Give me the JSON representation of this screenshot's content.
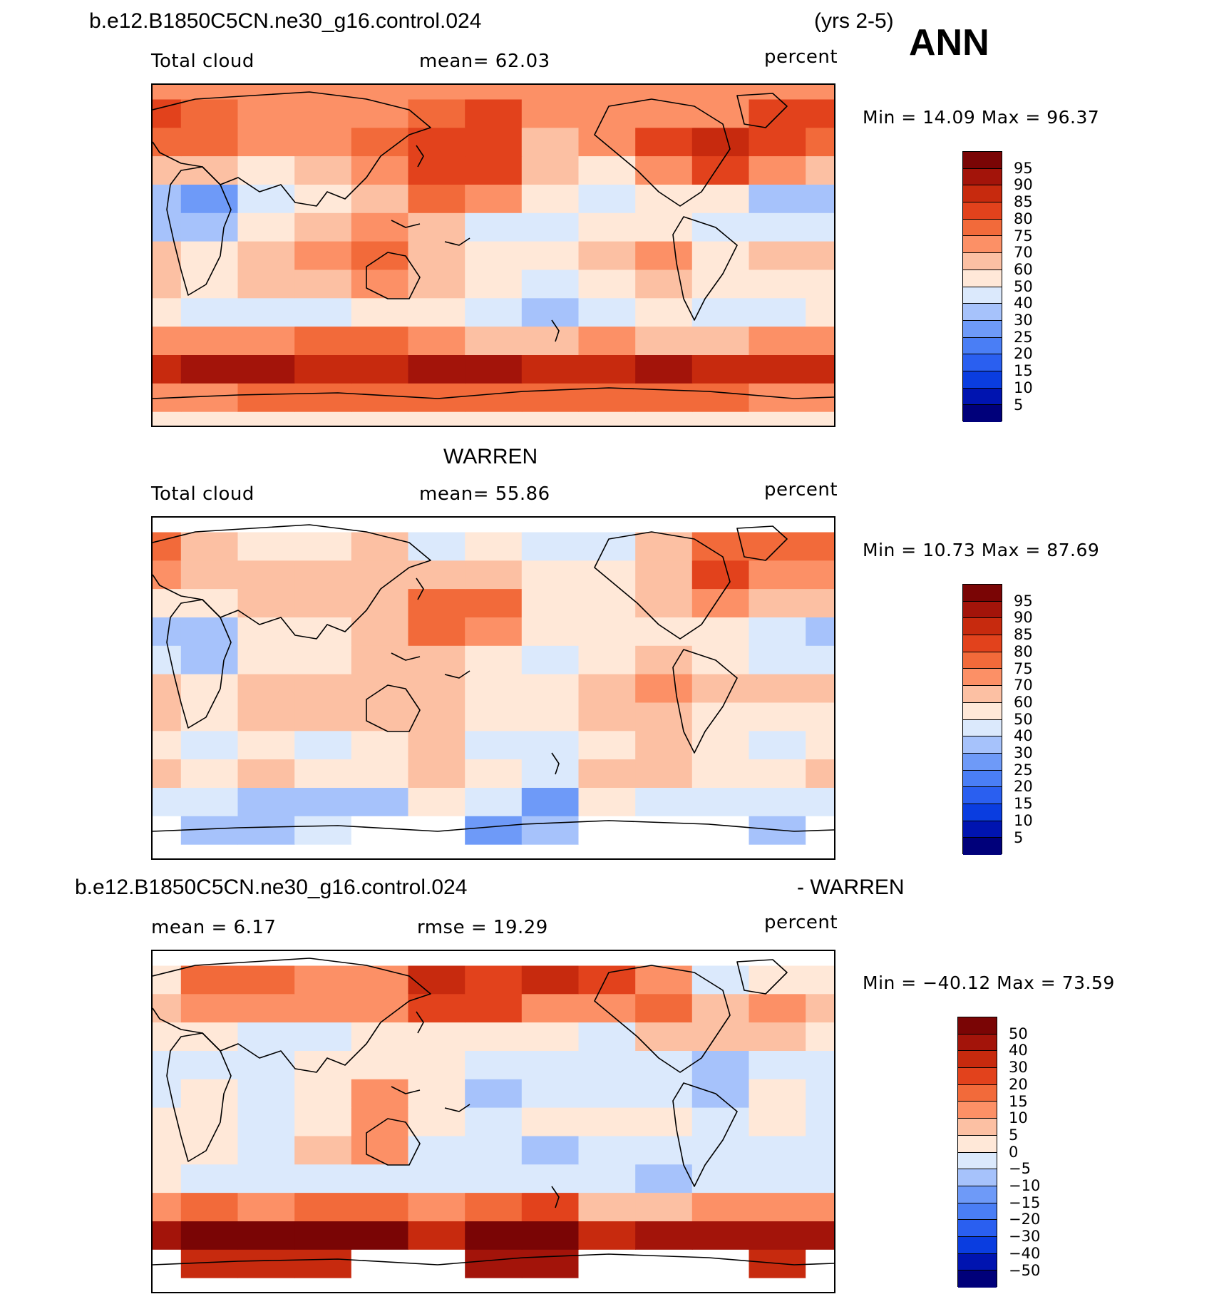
{
  "header": {
    "case_name": "b.e12.B1850C5CN.ne30_g16.control.024",
    "years": "(yrs 2-5)",
    "season": "ANN"
  },
  "panels": [
    {
      "id": "model",
      "title": "",
      "left_label": "Total cloud",
      "center_label": "mean=   62.03",
      "units": "percent",
      "minmax": "Min =   14.09 Max =   96.37",
      "colorbar_labels": [
        "95",
        "90",
        "85",
        "80",
        "75",
        "70",
        "60",
        "50",
        "40",
        "30",
        "25",
        "20",
        "15",
        "10",
        "5"
      ]
    },
    {
      "id": "obs",
      "title": "WARREN",
      "left_label": "Total cloud",
      "center_label": "mean=   55.86",
      "units": "percent",
      "minmax": "Min =   10.73 Max =   87.69",
      "colorbar_labels": [
        "95",
        "90",
        "85",
        "80",
        "75",
        "70",
        "60",
        "50",
        "40",
        "30",
        "25",
        "20",
        "15",
        "10",
        "5"
      ]
    },
    {
      "id": "diff",
      "title_left": "b.e12.B1850C5CN.ne30_g16.control.024",
      "title_right": "- WARREN",
      "left_label": "mean =    6.17",
      "center_label": "rmse =   19.29",
      "units": "percent",
      "minmax": "Min = −40.12  Max =   73.59",
      "colorbar_labels": [
        "50",
        "40",
        "30",
        "20",
        "15",
        "10",
        "5",
        "0",
        "−5",
        "−10",
        "−15",
        "−20",
        "−30",
        "−40",
        "−50"
      ]
    }
  ],
  "chart_data": [
    {
      "type": "heatmap",
      "title": "b.e12.B1850C5CN.ne30_g16.control.024",
      "variable": "Total cloud",
      "units": "percent",
      "mean": 62.03,
      "min": 14.09,
      "max": 96.37,
      "levels": [
        5,
        10,
        15,
        20,
        25,
        30,
        40,
        50,
        60,
        70,
        75,
        80,
        85,
        90,
        95
      ],
      "lat": [
        -90,
        -75,
        -60,
        -45,
        -30,
        -15,
        0,
        15,
        30,
        45,
        60,
        75,
        90
      ],
      "lon": [
        30,
        60,
        90,
        120,
        150,
        180,
        210,
        240,
        270,
        300,
        330,
        360,
        390
      ],
      "values": [
        [
          58,
          58,
          58,
          58,
          58,
          58,
          58,
          58,
          58,
          58,
          58,
          58,
          58
        ],
        [
          72,
          74,
          75,
          76,
          76,
          76,
          76,
          76,
          76,
          78,
          76,
          74,
          72
        ],
        [
          88,
          90,
          90,
          88,
          88,
          90,
          90,
          88,
          86,
          90,
          88,
          88,
          88
        ],
        [
          70,
          72,
          72,
          76,
          76,
          70,
          68,
          66,
          70,
          66,
          68,
          70,
          70
        ],
        [
          55,
          40,
          45,
          40,
          52,
          58,
          40,
          38,
          45,
          55,
          45,
          42,
          50
        ],
        [
          60,
          56,
          60,
          65,
          72,
          60,
          50,
          45,
          58,
          60,
          50,
          55,
          55
        ],
        [
          62,
          58,
          60,
          70,
          76,
          64,
          56,
          55,
          68,
          70,
          58,
          62,
          60
        ],
        [
          38,
          36,
          50,
          60,
          70,
          62,
          48,
          45,
          56,
          58,
          48,
          45,
          40
        ],
        [
          30,
          28,
          48,
          55,
          65,
          78,
          70,
          55,
          48,
          55,
          50,
          38,
          35
        ],
        [
          62,
          60,
          58,
          60,
          70,
          82,
          80,
          62,
          56,
          72,
          80,
          70,
          62
        ],
        [
          78,
          76,
          72,
          72,
          76,
          84,
          84,
          68,
          70,
          80,
          86,
          82,
          78
        ],
        [
          80,
          78,
          74,
          72,
          74,
          78,
          80,
          74,
          72,
          70,
          72,
          80,
          80
        ],
        [
          70,
          70,
          70,
          70,
          70,
          70,
          70,
          70,
          70,
          70,
          70,
          70,
          70
        ]
      ]
    },
    {
      "type": "heatmap",
      "title": "WARREN",
      "variable": "Total cloud",
      "units": "percent",
      "mean": 55.86,
      "min": 10.73,
      "max": 87.69,
      "levels": [
        5,
        10,
        15,
        20,
        25,
        30,
        40,
        50,
        60,
        70,
        75,
        80,
        85,
        90,
        95
      ],
      "lat": [
        -90,
        -75,
        -60,
        -45,
        -30,
        -15,
        0,
        15,
        30,
        45,
        60,
        75,
        90
      ],
      "lon": [
        30,
        60,
        90,
        120,
        150,
        180,
        210,
        240,
        270,
        300,
        330,
        360,
        390
      ],
      "values": [
        [
          null,
          null,
          null,
          null,
          null,
          null,
          null,
          null,
          null,
          null,
          null,
          null,
          null
        ],
        [
          null,
          36,
          38,
          42,
          null,
          null,
          28,
          30,
          null,
          null,
          null,
          36,
          null
        ],
        [
          45,
          40,
          38,
          30,
          38,
          55,
          40,
          28,
          50,
          45,
          48,
          40,
          45
        ],
        [
          60,
          55,
          60,
          58,
          58,
          60,
          52,
          42,
          62,
          60,
          55,
          58,
          60
        ],
        [
          55,
          45,
          50,
          42,
          55,
          60,
          45,
          40,
          50,
          62,
          50,
          45,
          52
        ],
        [
          60,
          55,
          62,
          60,
          62,
          62,
          55,
          50,
          62,
          62,
          55,
          58,
          58
        ],
        [
          62,
          58,
          62,
          66,
          64,
          62,
          58,
          55,
          65,
          70,
          62,
          60,
          62
        ],
        [
          40,
          36,
          52,
          58,
          60,
          60,
          55,
          48,
          58,
          60,
          56,
          45,
          42
        ],
        [
          35,
          30,
          52,
          55,
          62,
          76,
          72,
          56,
          50,
          58,
          56,
          40,
          38
        ],
        [
          58,
          58,
          60,
          62,
          66,
          78,
          76,
          58,
          58,
          64,
          72,
          62,
          60
        ],
        [
          72,
          66,
          60,
          60,
          62,
          62,
          62,
          54,
          58,
          62,
          80,
          72,
          72
        ],
        [
          76,
          62,
          58,
          58,
          60,
          46,
          56,
          40,
          48,
          60,
          76,
          76,
          76
        ],
        [
          null,
          null,
          null,
          null,
          null,
          null,
          null,
          null,
          null,
          null,
          null,
          null,
          null
        ]
      ]
    },
    {
      "type": "heatmap",
      "title": "b.e12.B1850C5CN.ne30_g16.control.024 - WARREN",
      "units": "percent",
      "mean": 6.17,
      "rmse": 19.29,
      "min": -40.12,
      "max": 73.59,
      "levels": [
        -50,
        -40,
        -30,
        -20,
        -15,
        -10,
        -5,
        0,
        5,
        10,
        15,
        20,
        30,
        40,
        50
      ],
      "lat": [
        -90,
        -75,
        -60,
        -45,
        -30,
        -15,
        0,
        15,
        30,
        45,
        60,
        75,
        90
      ],
      "lon": [
        30,
        60,
        90,
        120,
        150,
        180,
        210,
        240,
        270,
        300,
        330,
        360,
        390
      ],
      "values": [
        [
          null,
          null,
          null,
          null,
          null,
          null,
          null,
          null,
          null,
          null,
          null,
          null,
          null
        ],
        [
          null,
          38,
          36,
          34,
          null,
          null,
          48,
          46,
          null,
          null,
          null,
          38,
          null
        ],
        [
          42,
          50,
          52,
          58,
          50,
          35,
          50,
          60,
          36,
          45,
          40,
          48,
          42
        ],
        [
          10,
          18,
          12,
          18,
          18,
          10,
          16,
          24,
          8,
          6,
          14,
          12,
          10
        ],
        [
          0,
          -5,
          -5,
          -2,
          -3,
          -2,
          -5,
          -2,
          -5,
          -7,
          -5,
          -3,
          -2
        ],
        [
          0,
          1,
          -2,
          5,
          10,
          -2,
          -5,
          -8,
          -4,
          -2,
          -5,
          -3,
          -3
        ],
        [
          0,
          0,
          -2,
          4,
          12,
          2,
          -2,
          0,
          3,
          0,
          -4,
          2,
          -2
        ],
        [
          -2,
          0,
          -2,
          2,
          10,
          2,
          -7,
          -3,
          -2,
          -2,
          -8,
          0,
          -2
        ],
        [
          -5,
          -2,
          -4,
          0,
          3,
          2,
          -2,
          -1,
          -2,
          -3,
          -6,
          -2,
          -3
        ],
        [
          4,
          2,
          -2,
          -2,
          4,
          4,
          4,
          4,
          -2,
          8,
          8,
          8,
          2
        ],
        [
          6,
          10,
          12,
          12,
          14,
          22,
          22,
          14,
          12,
          18,
          6,
          10,
          6
        ],
        [
          4,
          16,
          16,
          14,
          14,
          32,
          24,
          34,
          24,
          10,
          -4,
          4,
          4
        ],
        [
          null,
          null,
          null,
          null,
          null,
          null,
          null,
          null,
          null,
          null,
          null,
          null,
          null
        ]
      ]
    }
  ]
}
